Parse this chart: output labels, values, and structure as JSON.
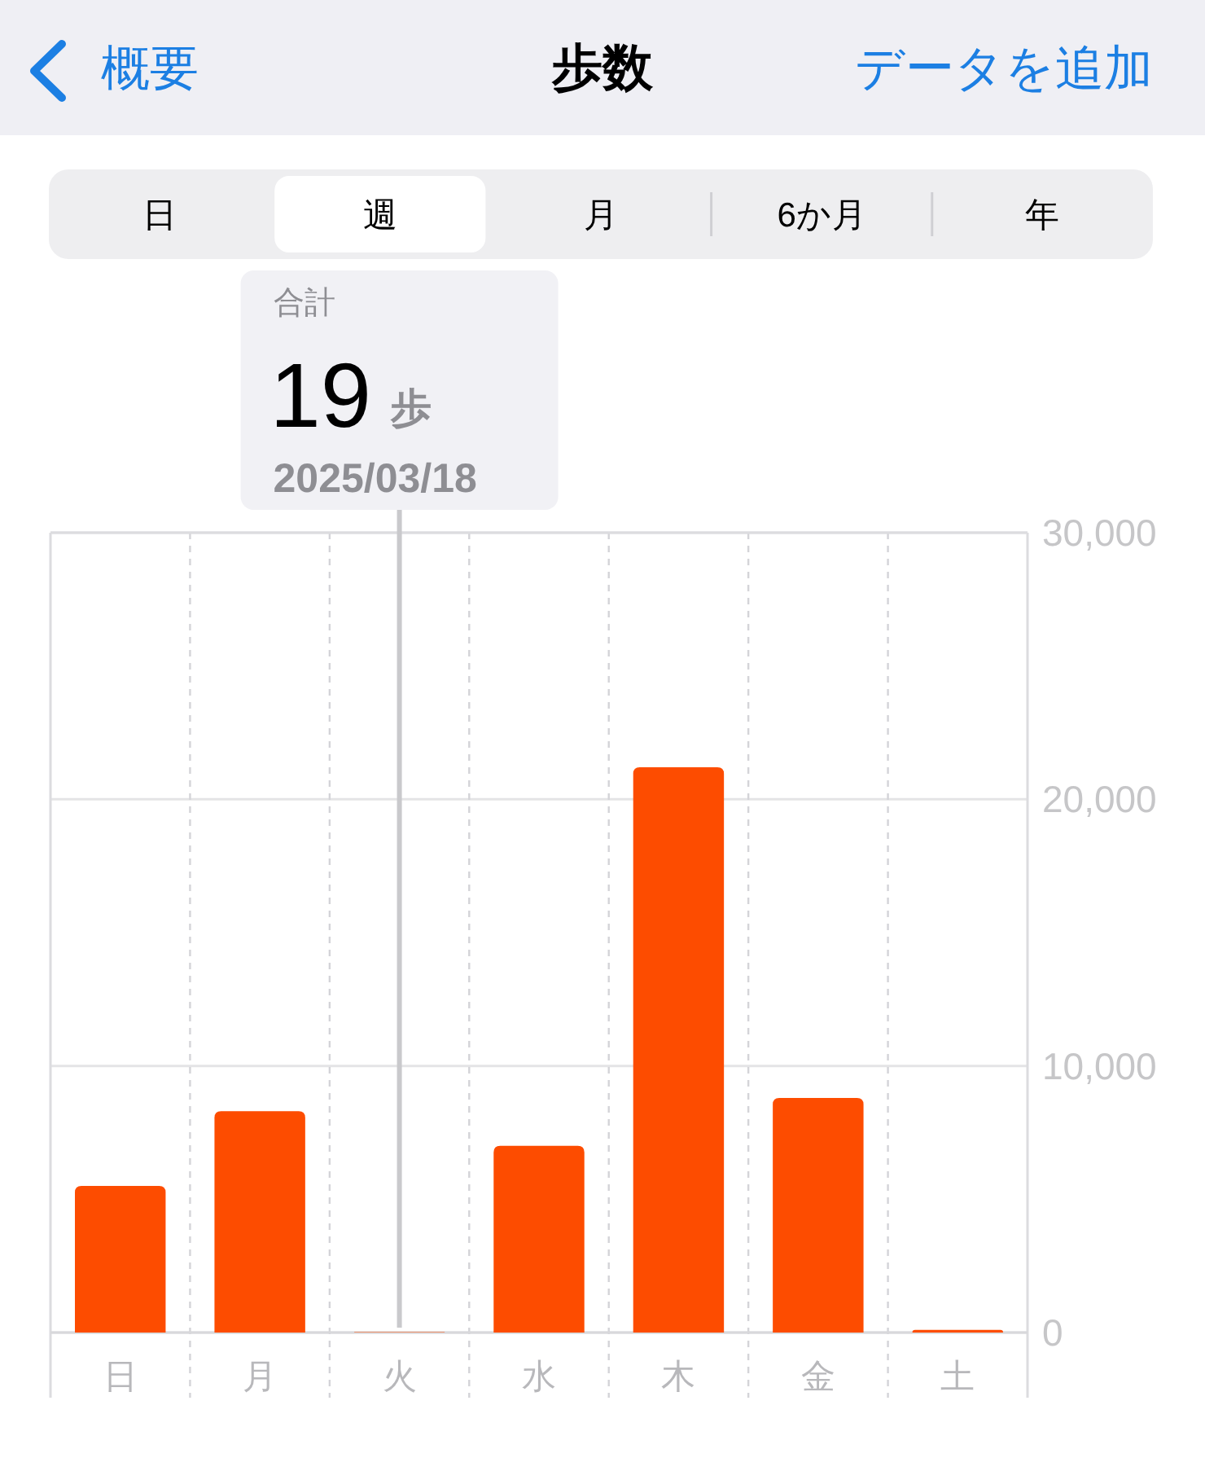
{
  "chart_data": {
    "type": "bar",
    "title": "歩数",
    "categories": [
      "日",
      "月",
      "火",
      "水",
      "木",
      "金",
      "土"
    ],
    "values": [
      5500,
      8300,
      19,
      7000,
      21200,
      8800,
      100
    ],
    "color": "#fd4c00",
    "ylim": [
      0,
      30000
    ],
    "yticks": [
      0,
      {
        "value": 10000,
        "label": "10,000"
      },
      {
        "value": 20000,
        "label": "20,000"
      },
      {
        "value": 30000,
        "label": "30,000"
      }
    ],
    "grid": true,
    "ref_lines": [
      {
        "axis": "x",
        "value": "火",
        "color": "#c9c9cc"
      }
    ],
    "annotations": [
      "概要",
      "データを追加",
      "日",
      "週",
      "月",
      "6か月",
      "年",
      "合計",
      "19",
      "歩",
      "2025/03/18"
    ]
  }
}
